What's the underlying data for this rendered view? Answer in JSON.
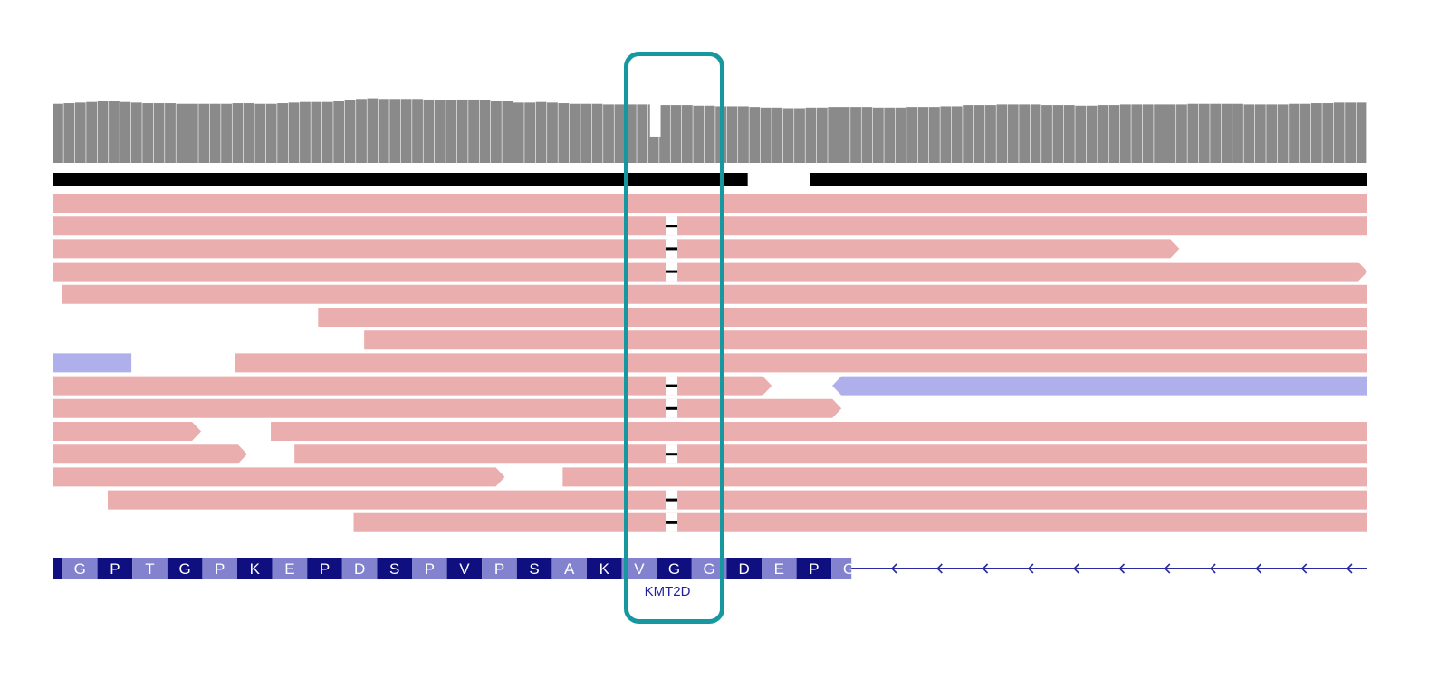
{
  "gene": {
    "name": "KMT2D",
    "strand": "minus",
    "amino_acids": [
      "G",
      "P",
      "T",
      "G",
      "P",
      "K",
      "E",
      "P",
      "D",
      "S",
      "P",
      "V",
      "P",
      "S",
      "A",
      "K",
      "V",
      "G",
      "G",
      "D",
      "E",
      "P",
      "G"
    ],
    "dark_color": "#0f0f80",
    "light_color": "#8282cf",
    "label_color": "#1f1fa0",
    "line_color": "#2a2aa0"
  },
  "coverage": {
    "color": "#8a8a8a",
    "deletion_bin_index": 53,
    "deletion_level": 0.45,
    "levels": [
      0.96,
      0.97,
      0.98,
      0.99,
      1.0,
      1.0,
      0.99,
      0.98,
      0.97,
      0.97,
      0.97,
      0.96,
      0.96,
      0.96,
      0.96,
      0.96,
      0.97,
      0.97,
      0.96,
      0.96,
      0.97,
      0.98,
      0.99,
      0.99,
      0.99,
      1.0,
      1.02,
      1.04,
      1.05,
      1.04,
      1.04,
      1.04,
      1.04,
      1.03,
      1.02,
      1.02,
      1.03,
      1.03,
      1.02,
      1.0,
      1.0,
      0.98,
      0.98,
      0.99,
      0.98,
      0.97,
      0.96,
      0.96,
      0.96,
      0.95,
      0.95,
      0.95,
      0.95,
      0.95,
      0.94,
      0.94,
      0.94,
      0.93,
      0.93,
      0.92,
      0.92,
      0.92,
      0.91,
      0.9,
      0.9,
      0.89,
      0.89,
      0.9,
      0.9,
      0.91,
      0.91,
      0.91,
      0.91,
      0.9,
      0.9,
      0.9,
      0.91,
      0.91,
      0.91,
      0.92,
      0.92,
      0.94,
      0.94,
      0.94,
      0.95,
      0.95,
      0.95,
      0.95,
      0.94,
      0.94,
      0.94,
      0.93,
      0.93,
      0.94,
      0.94,
      0.95,
      0.95,
      0.95,
      0.95,
      0.95,
      0.95,
      0.96,
      0.96,
      0.96,
      0.96,
      0.96,
      0.95,
      0.95,
      0.95,
      0.95,
      0.96,
      0.96,
      0.97,
      0.97,
      0.98,
      0.98,
      0.98
    ]
  },
  "paired_track": {
    "color": "#000000",
    "segments": [
      [
        0.0,
        0.5287
      ],
      [
        0.5758,
        1.0
      ]
    ]
  },
  "reads": {
    "forward_color": "#ebaeae",
    "reverse_color": "#afafec",
    "deletion_mark_color": "#000000",
    "deletion_center": 0.4711,
    "rows": [
      [
        {
          "start": 0.0,
          "end": 1.0,
          "dir": "forward",
          "tip": false,
          "del": false
        }
      ],
      [
        {
          "start": 0.0,
          "end": 1.0,
          "dir": "forward",
          "tip": false,
          "del": true
        }
      ],
      [
        {
          "start": 0.0,
          "end": 0.857,
          "dir": "forward",
          "tip": true,
          "del": true
        }
      ],
      [
        {
          "start": 0.0,
          "end": 1.0,
          "dir": "forward",
          "tip": true,
          "del": true
        }
      ],
      [
        {
          "start": 0.007,
          "end": 1.0,
          "dir": "forward",
          "tip": false,
          "del": false
        }
      ],
      [
        {
          "start": 0.202,
          "end": 1.0,
          "dir": "forward",
          "tip": false,
          "del": false
        }
      ],
      [
        {
          "start": 0.237,
          "end": 1.0,
          "dir": "forward",
          "tip": false,
          "del": false
        }
      ],
      [
        {
          "start": 0.0,
          "end": 0.06,
          "dir": "reverse",
          "tip": false,
          "del": false
        },
        {
          "start": 0.139,
          "end": 1.0,
          "dir": "forward",
          "tip": false,
          "del": false
        }
      ],
      [
        {
          "start": 0.0,
          "end": 0.547,
          "dir": "forward",
          "tip": true,
          "del": true
        },
        {
          "start": 0.593,
          "end": 1.0,
          "dir": "reverse",
          "tip": true,
          "del": false
        }
      ],
      [
        {
          "start": 0.0,
          "end": 0.6,
          "dir": "forward",
          "tip": true,
          "del": true
        }
      ],
      [
        {
          "start": 0.0,
          "end": 0.113,
          "dir": "forward",
          "tip": true,
          "del": false
        },
        {
          "start": 0.166,
          "end": 1.0,
          "dir": "forward",
          "tip": false,
          "del": false
        }
      ],
      [
        {
          "start": 0.0,
          "end": 0.148,
          "dir": "forward",
          "tip": true,
          "del": false
        },
        {
          "start": 0.184,
          "end": 1.0,
          "dir": "forward",
          "tip": false,
          "del": true
        }
      ],
      [
        {
          "start": 0.0,
          "end": 0.344,
          "dir": "forward",
          "tip": true,
          "del": false
        },
        {
          "start": 0.388,
          "end": 1.0,
          "dir": "forward",
          "tip": false,
          "del": false
        }
      ],
      [
        {
          "start": 0.042,
          "end": 1.0,
          "dir": "forward",
          "tip": false,
          "del": true
        }
      ],
      [
        {
          "start": 0.229,
          "end": 1.0,
          "dir": "forward",
          "tip": false,
          "del": true
        }
      ]
    ]
  },
  "highlight": {
    "color": "#17979f",
    "label": "deletion-highlight-box"
  }
}
